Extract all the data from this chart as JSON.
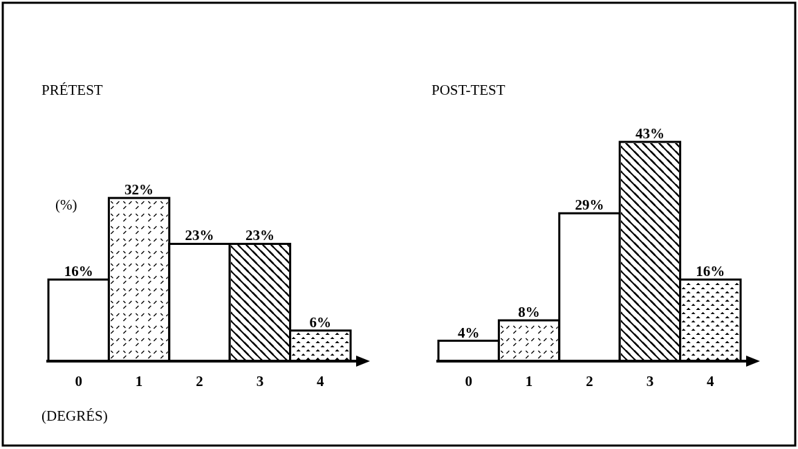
{
  "chart_data": [
    {
      "type": "bar",
      "title": "PRÉTEST",
      "ylabel": "(%)",
      "xlabel": "(DEGRÉS)",
      "categories": [
        "0",
        "1",
        "2",
        "3",
        "4"
      ],
      "values": [
        16,
        32,
        23,
        23,
        6
      ],
      "value_labels": [
        "16%",
        "32%",
        "23%",
        "23%",
        "6%"
      ],
      "color": "#ffffff"
    },
    {
      "type": "bar",
      "title": "POST-TEST",
      "categories": [
        "0",
        "1",
        "2",
        "3",
        "4"
      ],
      "values": [
        4,
        8,
        29,
        43,
        16
      ],
      "value_labels": [
        "4%",
        "8%",
        "29%",
        "43%",
        "16%"
      ],
      "color": "#ffffff"
    }
  ]
}
